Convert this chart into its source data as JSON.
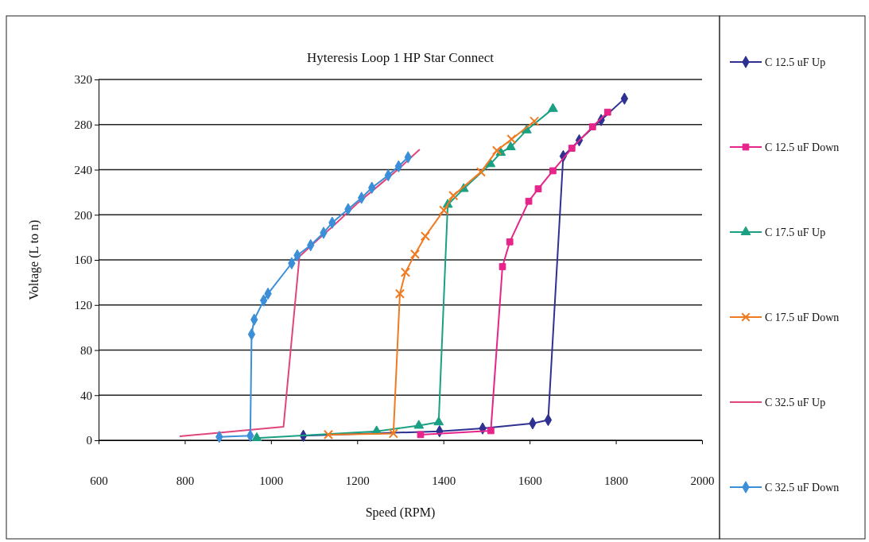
{
  "chart_data": {
    "type": "line",
    "title": "Hyteresis Loop 1 HP Star Connect",
    "xlabel": "Speed (RPM)",
    "ylabel": "Voltage (L to n)",
    "xlim": [
      600,
      2000
    ],
    "xticks": [
      600,
      800,
      1000,
      1200,
      1400,
      1600,
      1800,
      2000
    ],
    "ylim": [
      0,
      320
    ],
    "yticks": [
      0,
      40,
      80,
      120,
      160,
      200,
      240,
      280,
      320
    ],
    "grid": "y",
    "legend": "right",
    "series": [
      {
        "name": "C 12.5 uF Up",
        "color": "#2e3192",
        "marker": "diamond",
        "x": [
          1075,
          1391,
          1491,
          1607,
          1643,
          1678,
          1715,
          1766,
          1820
        ],
        "values": [
          4,
          8,
          10.5,
          15,
          18,
          252,
          266,
          284,
          303
        ]
      },
      {
        "name": "C 12.5 uF Down",
        "color": "#e6248a",
        "marker": "square",
        "x": [
          1781,
          1746,
          1698,
          1654,
          1620,
          1598,
          1554,
          1537,
          1510,
          1347
        ],
        "values": [
          291,
          278,
          259,
          239,
          223,
          212,
          176,
          154,
          8.5,
          5
        ]
      },
      {
        "name": "C 17.5 uF Up",
        "color": "#1aa082",
        "marker": "triangle",
        "x": [
          967,
          1245,
          1343,
          1389,
          1410,
          1447,
          1509,
          1533,
          1556,
          1593,
          1654
        ],
        "values": [
          2,
          8,
          13,
          16,
          209,
          223,
          245,
          255,
          260,
          275,
          294
        ]
      },
      {
        "name": "C 17.5 uF Down",
        "color": "#f07a22",
        "marker": "cross",
        "x": [
          1611,
          1558,
          1524,
          1487,
          1423,
          1401,
          1358,
          1334,
          1312,
          1299,
          1284,
          1133
        ],
        "values": [
          283,
          267,
          257,
          238,
          217,
          204,
          181,
          165,
          149,
          130,
          6,
          5
        ]
      },
      {
        "name": "C 32.5 uF Up",
        "color": "#e0457b",
        "marker": "none",
        "x": [
          788,
          1029,
          1066,
          1100,
          1150,
          1200,
          1250,
          1300,
          1345
        ],
        "values": [
          3.5,
          12,
          163,
          175,
          192,
          210,
          226,
          242,
          258
        ]
      },
      {
        "name": "C 32.5 uF Down",
        "color": "#3a8fd8",
        "marker": "diamond",
        "x": [
          1318,
          1296,
          1272,
          1234,
          1210,
          1179,
          1142,
          1122,
          1092,
          1061,
          1048,
          993,
          983,
          961,
          955,
          952,
          880
        ],
        "values": [
          251,
          243,
          235,
          224,
          215,
          205,
          193,
          184,
          173,
          164,
          157,
          130,
          124,
          107,
          94,
          4,
          3
        ]
      }
    ]
  }
}
